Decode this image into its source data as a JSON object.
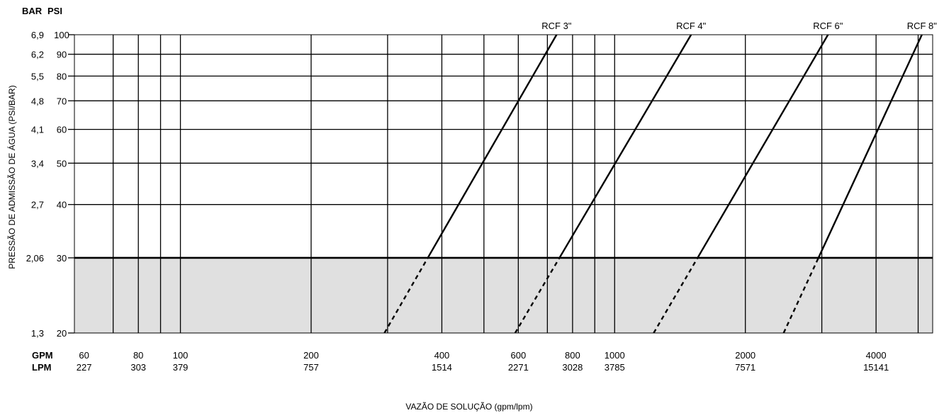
{
  "chart_data": {
    "type": "line",
    "title": "",
    "header": {
      "bar": "BAR",
      "psi": "PSI"
    },
    "xlabel": "VAZÃO DE SOLUÇÃO (gpm/lpm)",
    "ylabel": "PRESSÃO DE ADMISSÃO DE ÁGUA  (PSI/BAR)",
    "x_scale": "log",
    "y_scale": "log",
    "xlim": [
      57,
      5400
    ],
    "ylim": [
      20,
      100
    ],
    "grid": true,
    "x_row_labels": {
      "gpm": "GPM",
      "lpm": "LPM"
    },
    "x_ticks": [
      {
        "gpm": "60",
        "lpm": "227",
        "value": 60
      },
      {
        "gpm": "80",
        "lpm": "303",
        "value": 80
      },
      {
        "gpm": "100",
        "lpm": "379",
        "value": 100
      },
      {
        "gpm": "200",
        "lpm": "757",
        "value": 200
      },
      {
        "gpm": "400",
        "lpm": "1514",
        "value": 400
      },
      {
        "gpm": "600",
        "lpm": "2271",
        "value": 600
      },
      {
        "gpm": "800",
        "lpm": "3028",
        "value": 800
      },
      {
        "gpm": "1000",
        "lpm": "3785",
        "value": 1000
      },
      {
        "gpm": "2000",
        "lpm": "7571",
        "value": 2000
      },
      {
        "gpm": "4000",
        "lpm": "15141",
        "value": 4000
      }
    ],
    "x_gridlines": [
      70,
      80,
      90,
      100,
      200,
      300,
      400,
      500,
      600,
      700,
      800,
      900,
      1000,
      2000,
      3000,
      4000,
      5000
    ],
    "y_ticks": [
      {
        "psi": "100",
        "bar": "6,9",
        "value": 100
      },
      {
        "psi": "90",
        "bar": "6,2",
        "value": 90
      },
      {
        "psi": "80",
        "bar": "5,5",
        "value": 80
      },
      {
        "psi": "70",
        "bar": "4,8",
        "value": 70
      },
      {
        "psi": "60",
        "bar": "4,1",
        "value": 60
      },
      {
        "psi": "50",
        "bar": "3,4",
        "value": 50
      },
      {
        "psi": "40",
        "bar": "2,7",
        "value": 40
      },
      {
        "psi": "30",
        "bar": "2,06",
        "value": 30
      },
      {
        "psi": "20",
        "bar": "1,3",
        "value": 20
      }
    ],
    "shaded_region": {
      "y_from": 20,
      "y_to": 30,
      "color": "#e0e0e0",
      "line_style_below": "dashed"
    },
    "series": [
      {
        "name": "RCF 3\"",
        "points": [
          [
            295,
            20
          ],
          [
            735,
            100
          ]
        ]
      },
      {
        "name": "RCF 4\"",
        "points": [
          [
            590,
            20
          ],
          [
            1500,
            100
          ]
        ]
      },
      {
        "name": "RCF 6\"",
        "points": [
          [
            1230,
            20
          ],
          [
            3100,
            100
          ]
        ]
      },
      {
        "name": "RCF 8\"",
        "points": [
          [
            2450,
            20
          ],
          [
            5100,
            100
          ]
        ]
      }
    ]
  }
}
